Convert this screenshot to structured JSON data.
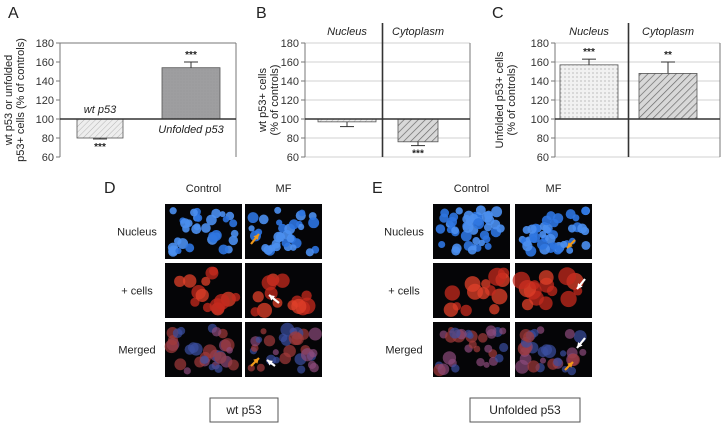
{
  "chart_data": [
    {
      "type": "bar",
      "panel_label": "A",
      "ylabel": "wt p53 or unfolded\np53+ cells (% of controls)",
      "ylim": [
        60,
        180
      ],
      "yticks": [
        60,
        80,
        100,
        120,
        140,
        160,
        180
      ],
      "baseline": 100,
      "grid": false,
      "categories": [
        "wt p53",
        "Unfolded p53"
      ],
      "values": [
        80,
        154
      ],
      "errors": [
        1,
        6
      ],
      "significance": [
        "***",
        "***"
      ],
      "colors": [
        "#d8d8d8",
        "#9e9ea0"
      ]
    },
    {
      "type": "bar",
      "panel_label": "B",
      "ylabel": "wt p53+ cells\n(% of controls)",
      "ylim": [
        60,
        180
      ],
      "yticks": [
        60,
        80,
        100,
        120,
        140,
        160,
        180
      ],
      "baseline": 100,
      "grid": true,
      "categories": [
        "Nucleus",
        "Cytoplasm"
      ],
      "values": [
        97,
        76
      ],
      "errors": [
        5,
        4
      ],
      "significance": [
        "",
        "***"
      ],
      "colors": [
        "#d8d8d8",
        "#a9a9a9"
      ]
    },
    {
      "type": "bar",
      "panel_label": "C",
      "ylabel": "Unfolded p53+ cells\n(% of controls)",
      "ylim": [
        60,
        180
      ],
      "yticks": [
        60,
        80,
        100,
        120,
        140,
        160,
        180
      ],
      "baseline": 100,
      "grid": true,
      "categories": [
        "Nucleus",
        "Cytoplasm"
      ],
      "values": [
        157,
        148
      ],
      "errors": [
        6,
        12
      ],
      "significance": [
        "***",
        "**"
      ],
      "colors": [
        "#ececec",
        "#a9a9a9"
      ]
    }
  ],
  "micrographs": [
    {
      "panel_label": "D",
      "columns": [
        "Control",
        "MF"
      ],
      "rows": [
        "Nucleus",
        "+ cells",
        "Merged"
      ],
      "caption": "wt p53"
    },
    {
      "panel_label": "E",
      "columns": [
        "Control",
        "MF"
      ],
      "rows": [
        "Nucleus",
        "+ cells",
        "Merged"
      ],
      "caption": "Unfolded p53"
    }
  ],
  "colors": {
    "nucleus_stain": "#2a6fd6",
    "positive_stain": "#d42a1c",
    "merged_stain": "#6a3a6a",
    "orange_arrow": "#f29a1a",
    "white_arrow": "#ffffff"
  }
}
